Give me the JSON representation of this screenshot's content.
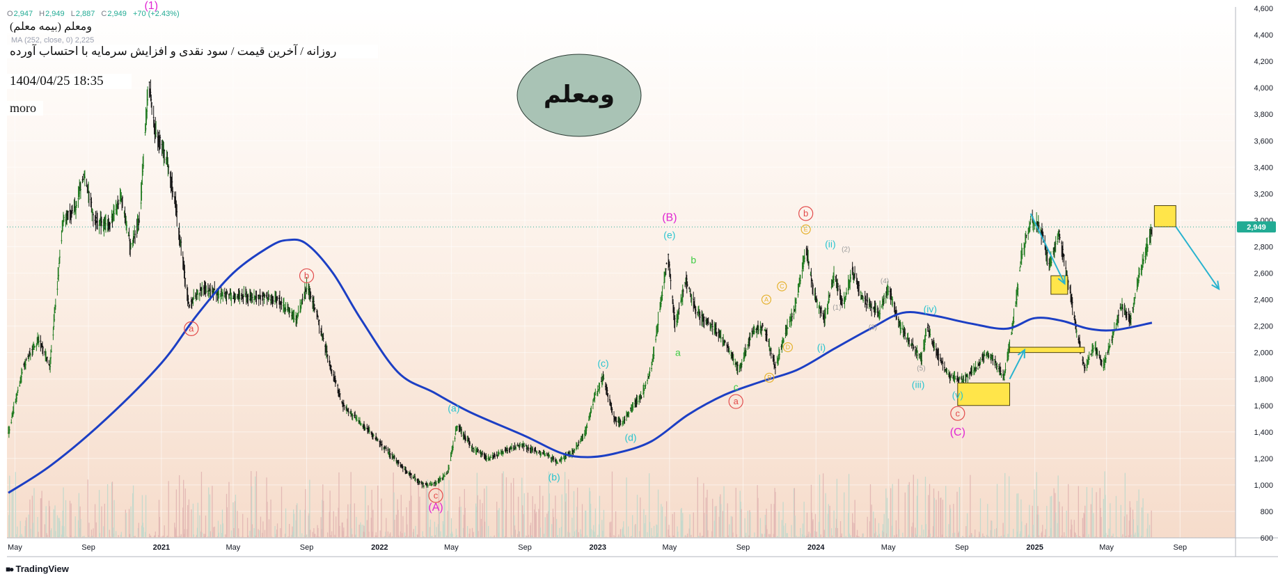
{
  "header": {
    "ohlc": {
      "o_label": "O",
      "o": "2,947",
      "h_label": "H",
      "h": "2,949",
      "l_label": "L",
      "l": "2,887",
      "c_label": "C",
      "c": "2,949",
      "change": "+70 (+2.43%)"
    },
    "symbol": "ومعلم (بیمه معلم)",
    "ma_indicator": "MA (252, close, 0)  2,225",
    "description": "روزانه / آخرین قیمت / سود نقدی و افزایش سرمایه با احتساب آورده",
    "datetime": "1404/04/25 18:35",
    "author": "moro"
  },
  "branding": {
    "logo_text": "TradingView"
  },
  "title_ellipse": {
    "text": "ومعلم",
    "fill": "#a9c3b5",
    "stroke": "#2b3a33"
  },
  "chart_data": {
    "type": "candlestick",
    "scale": "linear",
    "price_axis": {
      "range": [
        600,
        4600
      ],
      "ticks": [
        "4,600",
        "4,400",
        "4,200",
        "4,000",
        "3,800",
        "3,600",
        "3,400",
        "3,200",
        "3,000",
        "2,800",
        "2,600",
        "2,400",
        "2,200",
        "2,000",
        "1,800",
        "1,600",
        "1,400",
        "1,200",
        "1,000",
        "800",
        "600"
      ]
    },
    "time_axis": {
      "range": [
        "2020-04-20",
        "2025-11-20"
      ],
      "ticks": [
        {
          "label": "May",
          "date": "2020-05-01",
          "bold": false
        },
        {
          "label": "Sep",
          "date": "2020-09-01",
          "bold": false
        },
        {
          "label": "2021",
          "date": "2021-01-01",
          "bold": true
        },
        {
          "label": "May",
          "date": "2021-05-01",
          "bold": false
        },
        {
          "label": "Sep",
          "date": "2021-09-01",
          "bold": false
        },
        {
          "label": "2022",
          "date": "2022-01-01",
          "bold": true
        },
        {
          "label": "May",
          "date": "2022-05-01",
          "bold": false
        },
        {
          "label": "Sep",
          "date": "2022-09-01",
          "bold": false
        },
        {
          "label": "2023",
          "date": "2023-01-01",
          "bold": true
        },
        {
          "label": "May",
          "date": "2023-05-01",
          "bold": false
        },
        {
          "label": "Sep",
          "date": "2023-09-01",
          "bold": false
        },
        {
          "label": "2024",
          "date": "2024-01-01",
          "bold": true
        },
        {
          "label": "May",
          "date": "2024-05-01",
          "bold": false
        },
        {
          "label": "Sep",
          "date": "2024-09-01",
          "bold": false
        },
        {
          "label": "2025",
          "date": "2025-01-01",
          "bold": true
        },
        {
          "label": "May",
          "date": "2025-05-01",
          "bold": false
        },
        {
          "label": "Sep",
          "date": "2025-09-01",
          "bold": false
        }
      ]
    },
    "last_price": {
      "label": "2,949",
      "value": 2949,
      "color": "#22ab94"
    },
    "price_path": [
      [
        "2020-04-20",
        1400
      ],
      [
        "2020-05-15",
        1900
      ],
      [
        "2020-06-10",
        2100
      ],
      [
        "2020-06-28",
        1900
      ],
      [
        "2020-07-20",
        3000
      ],
      [
        "2020-08-10",
        3100
      ],
      [
        "2020-08-25",
        3350
      ],
      [
        "2020-09-10",
        3000
      ],
      [
        "2020-10-05",
        2950
      ],
      [
        "2020-10-25",
        3200
      ],
      [
        "2020-11-10",
        2800
      ],
      [
        "2020-11-25",
        3000
      ],
      [
        "2020-12-10",
        4050
      ],
      [
        "2020-12-20",
        3700
      ],
      [
        "2021-01-10",
        3450
      ],
      [
        "2021-01-25",
        3100
      ],
      [
        "2021-02-15",
        2350
      ],
      [
        "2021-03-10",
        2480
      ],
      [
        "2021-04-05",
        2450
      ],
      [
        "2021-04-20",
        2430
      ],
      [
        "2021-06-01",
        2420
      ],
      [
        "2021-07-15",
        2400
      ],
      [
        "2021-08-15",
        2250
      ],
      [
        "2021-09-01",
        2500
      ],
      [
        "2021-09-15",
        2330
      ],
      [
        "2021-10-10",
        1900
      ],
      [
        "2021-11-01",
        1600
      ],
      [
        "2021-12-15",
        1400
      ],
      [
        "2022-01-15",
        1250
      ],
      [
        "2022-02-15",
        1100
      ],
      [
        "2022-03-15",
        1000
      ],
      [
        "2022-04-05",
        1010
      ],
      [
        "2022-04-25",
        1100
      ],
      [
        "2022-05-10",
        1450
      ],
      [
        "2022-06-05",
        1280
      ],
      [
        "2022-07-01",
        1200
      ],
      [
        "2022-08-01",
        1260
      ],
      [
        "2022-08-25",
        1300
      ],
      [
        "2022-09-15",
        1260
      ],
      [
        "2022-10-10",
        1220
      ],
      [
        "2022-10-25",
        1170
      ],
      [
        "2022-11-20",
        1250
      ],
      [
        "2022-12-10",
        1390
      ],
      [
        "2022-12-25",
        1650
      ],
      [
        "2023-01-10",
        1810
      ],
      [
        "2023-01-28",
        1500
      ],
      [
        "2023-02-10",
        1460
      ],
      [
        "2023-02-28",
        1600
      ],
      [
        "2023-03-15",
        1670
      ],
      [
        "2023-04-01",
        1900
      ],
      [
        "2023-04-15",
        2350
      ],
      [
        "2023-04-28",
        2740
      ],
      [
        "2023-05-10",
        2200
      ],
      [
        "2023-05-28",
        2550
      ],
      [
        "2023-06-15",
        2300
      ],
      [
        "2023-07-10",
        2200
      ],
      [
        "2023-08-05",
        2050
      ],
      [
        "2023-08-25",
        1860
      ],
      [
        "2023-09-15",
        2150
      ],
      [
        "2023-10-05",
        2200
      ],
      [
        "2023-10-25",
        1880
      ],
      [
        "2023-11-10",
        2150
      ],
      [
        "2023-11-25",
        2300
      ],
      [
        "2023-12-15",
        2800
      ],
      [
        "2023-12-28",
        2450
      ],
      [
        "2024-01-15",
        2250
      ],
      [
        "2024-02-01",
        2600
      ],
      [
        "2024-02-15",
        2350
      ],
      [
        "2024-03-01",
        2620
      ],
      [
        "2024-03-20",
        2400
      ],
      [
        "2024-04-15",
        2300
      ],
      [
        "2024-05-01",
        2490
      ],
      [
        "2024-05-20",
        2200
      ],
      [
        "2024-06-10",
        2050
      ],
      [
        "2024-06-25",
        1950
      ],
      [
        "2024-07-05",
        2200
      ],
      [
        "2024-07-25",
        1950
      ],
      [
        "2024-08-10",
        1820
      ],
      [
        "2024-09-01",
        1790
      ],
      [
        "2024-09-25",
        1880
      ],
      [
        "2024-10-10",
        1980
      ],
      [
        "2024-10-25",
        1950
      ],
      [
        "2024-11-10",
        1800
      ],
      [
        "2024-11-25",
        2200
      ],
      [
        "2024-12-10",
        2750
      ],
      [
        "2024-12-25",
        3000
      ],
      [
        "2025-01-10",
        2950
      ],
      [
        "2025-01-25",
        2650
      ],
      [
        "2025-02-10",
        2900
      ],
      [
        "2025-02-25",
        2550
      ],
      [
        "2025-03-10",
        2200
      ],
      [
        "2025-03-25",
        1870
      ],
      [
        "2025-04-10",
        2050
      ],
      [
        "2025-04-25",
        1900
      ],
      [
        "2025-05-10",
        2100
      ],
      [
        "2025-05-25",
        2350
      ],
      [
        "2025-06-10",
        2250
      ],
      [
        "2025-06-25",
        2600
      ],
      [
        "2025-07-16",
        2949
      ]
    ],
    "moving_average": {
      "name": "MA (252, close, 0)",
      "color": "#1c3fc4",
      "points": [
        [
          "2020-04-20",
          940
        ],
        [
          "2020-07-01",
          1150
        ],
        [
          "2020-10-01",
          1500
        ],
        [
          "2021-01-01",
          1920
        ],
        [
          "2021-03-01",
          2280
        ],
        [
          "2021-05-01",
          2600
        ],
        [
          "2021-07-01",
          2800
        ],
        [
          "2021-08-01",
          2850
        ],
        [
          "2021-09-01",
          2820
        ],
        [
          "2021-10-15",
          2600
        ],
        [
          "2021-12-01",
          2250
        ],
        [
          "2022-02-01",
          1850
        ],
        [
          "2022-04-01",
          1700
        ],
        [
          "2022-06-01",
          1550
        ],
        [
          "2022-09-01",
          1370
        ],
        [
          "2022-11-01",
          1240
        ],
        [
          "2022-12-15",
          1210
        ],
        [
          "2023-02-01",
          1240
        ],
        [
          "2023-04-01",
          1330
        ],
        [
          "2023-06-01",
          1530
        ],
        [
          "2023-08-01",
          1680
        ],
        [
          "2023-10-01",
          1780
        ],
        [
          "2023-12-01",
          1870
        ],
        [
          "2024-02-01",
          2030
        ],
        [
          "2024-04-01",
          2180
        ],
        [
          "2024-05-25",
          2300
        ],
        [
          "2024-07-15",
          2280
        ],
        [
          "2024-09-15",
          2220
        ],
        [
          "2024-11-15",
          2180
        ],
        [
          "2025-01-01",
          2260
        ],
        [
          "2025-02-15",
          2240
        ],
        [
          "2025-04-01",
          2180
        ],
        [
          "2025-05-15",
          2170
        ],
        [
          "2025-07-16",
          2225
        ]
      ]
    },
    "volume_scale": {
      "min": 0,
      "max": 100,
      "color_up": "#c5d9cc",
      "color_down": "#e3b9b5"
    },
    "wave_labels": [
      {
        "text": "(1)",
        "date": "2020-12-15",
        "price": 4620,
        "color": "#e025d2",
        "circled": false
      },
      {
        "text": "a",
        "date": "2021-02-20",
        "price": 2180,
        "color": "#e24b4b",
        "circled": true
      },
      {
        "text": "b",
        "date": "2021-09-01",
        "price": 2580,
        "color": "#e24b4b",
        "circled": true
      },
      {
        "text": "c",
        "date": "2022-04-05",
        "price": 920,
        "color": "#e24b4b",
        "circled": true
      },
      {
        "text": "(A)",
        "date": "2022-04-05",
        "price": 830,
        "color": "#e025d2",
        "circled": false
      },
      {
        "text": "(a)",
        "date": "2022-05-05",
        "price": 1580,
        "color": "#29c4cf",
        "circled": false
      },
      {
        "text": "(b)",
        "date": "2022-10-20",
        "price": 1060,
        "color": "#29c4cf",
        "circled": false
      },
      {
        "text": "(c)",
        "date": "2023-01-10",
        "price": 1920,
        "color": "#29c4cf",
        "circled": false
      },
      {
        "text": "(d)",
        "date": "2023-02-25",
        "price": 1360,
        "color": "#29c4cf",
        "circled": false
      },
      {
        "text": "(B)",
        "date": "2023-05-01",
        "price": 3020,
        "color": "#e025d2",
        "circled": false
      },
      {
        "text": "(e)",
        "date": "2023-05-01",
        "price": 2890,
        "color": "#29c4cf",
        "circled": false
      },
      {
        "text": "a",
        "date": "2023-05-15",
        "price": 2000,
        "color": "#3ecb42",
        "circled": false
      },
      {
        "text": "b",
        "date": "2023-06-10",
        "price": 2700,
        "color": "#3ecb42",
        "circled": false
      },
      {
        "text": "c",
        "date": "2023-08-20",
        "price": 1740,
        "color": "#3ecb42",
        "circled": false
      },
      {
        "text": "a",
        "date": "2023-08-20",
        "price": 1630,
        "color": "#e24b4b",
        "circled": true
      },
      {
        "text": "A",
        "date": "2023-10-10",
        "price": 2400,
        "color": "#e4b12c",
        "circled": true
      },
      {
        "text": "B",
        "date": "2023-10-15",
        "price": 1810,
        "color": "#e4b12c",
        "circled": true
      },
      {
        "text": "C",
        "date": "2023-11-05",
        "price": 2500,
        "color": "#e4b12c",
        "circled": true
      },
      {
        "text": "D",
        "date": "2023-11-15",
        "price": 2040,
        "color": "#e4b12c",
        "circled": true
      },
      {
        "text": "b",
        "date": "2023-12-15",
        "price": 3050,
        "color": "#e24b4b",
        "circled": true
      },
      {
        "text": "E",
        "date": "2023-12-15",
        "price": 2930,
        "color": "#e4b12c",
        "circled": true
      },
      {
        "text": "(ii)",
        "date": "2024-01-25",
        "price": 2820,
        "color": "#29c4cf",
        "circled": false
      },
      {
        "text": "(2)",
        "date": "2024-02-20",
        "price": 2790,
        "color": "#9b9b9b",
        "circled": false
      },
      {
        "text": "(i)",
        "date": "2024-01-10",
        "price": 2040,
        "color": "#29c4cf",
        "circled": false
      },
      {
        "text": "(1)",
        "date": "2024-02-05",
        "price": 2350,
        "color": "#9b9b9b",
        "circled": false
      },
      {
        "text": "(3)",
        "date": "2024-04-05",
        "price": 2200,
        "color": "#9b9b9b",
        "circled": false
      },
      {
        "text": "(4)",
        "date": "2024-04-25",
        "price": 2550,
        "color": "#9b9b9b",
        "circled": false
      },
      {
        "text": "(iv)",
        "date": "2024-07-10",
        "price": 2330,
        "color": "#29c4cf",
        "circled": false
      },
      {
        "text": "(5)",
        "date": "2024-06-25",
        "price": 1890,
        "color": "#9b9b9b",
        "circled": false
      },
      {
        "text": "(iii)",
        "date": "2024-06-20",
        "price": 1760,
        "color": "#29c4cf",
        "circled": false
      },
      {
        "text": "(v)",
        "date": "2024-08-25",
        "price": 1680,
        "color": "#29c4cf",
        "circled": false
      },
      {
        "text": "c",
        "date": "2024-08-25",
        "price": 1540,
        "color": "#e24b4b",
        "circled": true
      },
      {
        "text": "(C)",
        "date": "2024-08-25",
        "price": 1400,
        "color": "#e025d2",
        "circled": false
      }
    ],
    "zones": [
      {
        "date_from": "2024-08-25",
        "date_to": "2024-11-20",
        "price_from": 1600,
        "price_to": 1770,
        "fill": "#ffe54a"
      },
      {
        "date_from": "2025-01-28",
        "date_to": "2025-02-25",
        "price_from": 2440,
        "price_to": 2580,
        "fill": "#ffe54a"
      },
      {
        "date_from": "2025-07-20",
        "date_to": "2025-08-25",
        "price_from": 2950,
        "price_to": 3110,
        "fill": "#ffe54a"
      },
      {
        "date_from": "2024-11-20",
        "date_to": "2025-03-25",
        "price_from": 2000,
        "price_to": 2040,
        "fill": "#ffe54a"
      }
    ],
    "arrows": [
      {
        "from": [
          "2024-11-20",
          1800
        ],
        "to": [
          "2024-12-15",
          2020
        ],
        "color": "#29b3cf"
      },
      {
        "from": [
          "2024-12-25",
          3050
        ],
        "to": [
          "2025-02-20",
          2520
        ],
        "color": "#29b3cf"
      },
      {
        "from": [
          "2025-08-25",
          2950
        ],
        "to": [
          "2025-11-05",
          2480
        ],
        "color": "#29b3cf"
      }
    ]
  }
}
